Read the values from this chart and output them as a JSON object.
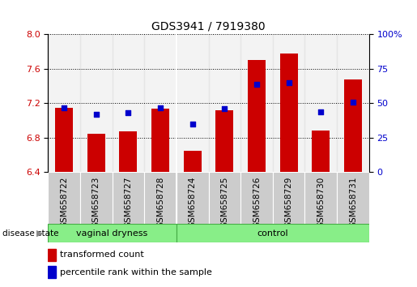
{
  "title": "GDS3941 / 7919380",
  "samples": [
    "GSM658722",
    "GSM658723",
    "GSM658727",
    "GSM658728",
    "GSM658724",
    "GSM658725",
    "GSM658726",
    "GSM658729",
    "GSM658730",
    "GSM658731"
  ],
  "transformed_count": [
    7.15,
    6.85,
    6.87,
    7.14,
    6.65,
    7.12,
    7.7,
    7.78,
    6.88,
    7.48
  ],
  "percentile_rank": [
    47,
    42,
    43,
    47,
    35,
    46,
    64,
    65,
    44,
    51
  ],
  "ylim": [
    6.4,
    8.0
  ],
  "yticks": [
    6.4,
    6.8,
    7.2,
    7.6,
    8.0
  ],
  "right_yticks": [
    0,
    25,
    50,
    75,
    100
  ],
  "bar_color": "#cc0000",
  "dot_color": "#0000cc",
  "bar_width": 0.55,
  "n_vaginal": 4,
  "n_control": 6,
  "group_labels": [
    "vaginal dryness",
    "control"
  ],
  "group_color": "#88ee88",
  "group_border_color": "#44aa44",
  "disease_state_label": "disease state",
  "legend_bar_label": "transformed count",
  "legend_dot_label": "percentile rank within the sample",
  "left_tick_color": "#cc0000",
  "right_tick_color": "#0000cc",
  "sample_box_color": "#cccccc",
  "tick_fontsize": 8,
  "title_fontsize": 10
}
